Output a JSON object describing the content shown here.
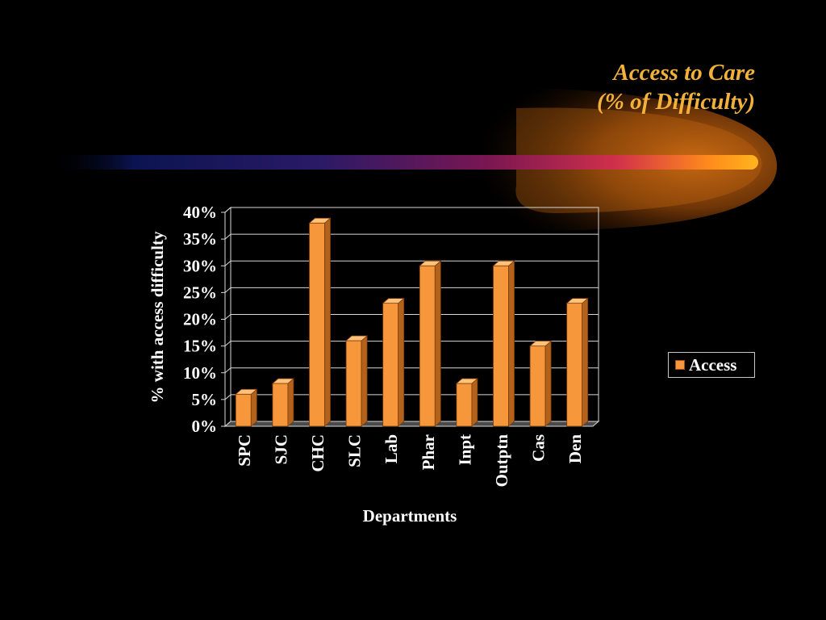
{
  "title": {
    "line1": "Access to Care",
    "line2": "(% of Difficulty)"
  },
  "colors": {
    "background": "#000000",
    "title": "#f2b23a",
    "bar": "#f5973a",
    "text": "#ffffff"
  },
  "chart_data": {
    "type": "bar",
    "categories": [
      "SPC",
      "SJC",
      "CHC",
      "SLC",
      "Lab",
      "Phar",
      "Inpt",
      "Outptn",
      "Cas",
      "Den"
    ],
    "series": [
      {
        "name": "Access",
        "values": [
          6,
          8,
          38,
          16,
          23,
          30,
          8,
          30,
          15,
          23
        ]
      }
    ],
    "value_unit": "%",
    "ylim": [
      0,
      40
    ],
    "yticks": [
      "0%",
      "5%",
      "10%",
      "15%",
      "20%",
      "25%",
      "30%",
      "35%",
      "40%"
    ],
    "xlabel": "Departments",
    "ylabel": "% with access difficulty",
    "legend_position": "right",
    "grid": true
  }
}
